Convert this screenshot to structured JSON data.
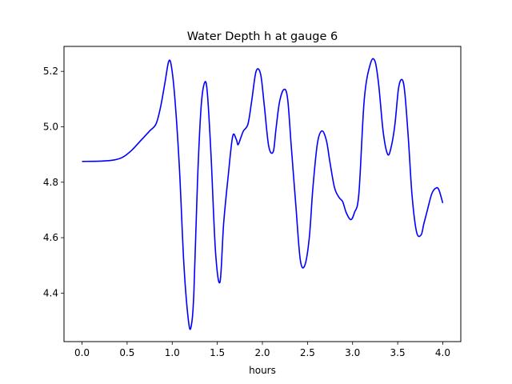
{
  "chart_data": {
    "type": "line",
    "title": "Water Depth h at gauge 6",
    "xlabel": "hours",
    "ylabel": "",
    "xlim": [
      -0.2,
      4.2
    ],
    "ylim": [
      4.225,
      5.29
    ],
    "grid": false,
    "x_ticks": [
      0.0,
      0.5,
      1.0,
      1.5,
      2.0,
      2.5,
      3.0,
      3.5,
      4.0
    ],
    "x_tick_labels": [
      "0.0",
      "0.5",
      "1.0",
      "1.5",
      "2.0",
      "2.5",
      "3.0",
      "3.5",
      "4.0"
    ],
    "y_ticks": [
      4.4,
      4.6,
      4.8,
      5.0,
      5.2
    ],
    "y_tick_labels": [
      "4.4",
      "4.6",
      "4.8",
      "5.0",
      "5.2"
    ],
    "series": [
      {
        "color": "#0000ff",
        "x": [
          0.0,
          0.2,
          0.35,
          0.45,
          0.55,
          0.65,
          0.75,
          0.82,
          0.87,
          0.92,
          0.96,
          0.99,
          1.03,
          1.08,
          1.13,
          1.18,
          1.21,
          1.24,
          1.28,
          1.32,
          1.36,
          1.39,
          1.43,
          1.48,
          1.53,
          1.57,
          1.62,
          1.67,
          1.71,
          1.73,
          1.76,
          1.79,
          1.84,
          1.88,
          1.93,
          1.98,
          2.02,
          2.07,
          2.12,
          2.15,
          2.19,
          2.24,
          2.28,
          2.32,
          2.37,
          2.42,
          2.47,
          2.52,
          2.56,
          2.61,
          2.66,
          2.71,
          2.75,
          2.8,
          2.85,
          2.89,
          2.93,
          2.98,
          3.02,
          3.07,
          3.13,
          3.2,
          3.25,
          3.29,
          3.34,
          3.39,
          3.43,
          3.47,
          3.51,
          3.55,
          3.58,
          3.62,
          3.66,
          3.71,
          3.76,
          3.79,
          3.83,
          3.88,
          3.93,
          3.96,
          4.0
        ],
        "y": [
          4.875,
          4.876,
          4.88,
          4.89,
          4.915,
          4.95,
          4.985,
          5.01,
          5.07,
          5.16,
          5.235,
          5.22,
          5.1,
          4.85,
          4.5,
          4.3,
          4.28,
          4.4,
          4.8,
          5.07,
          5.16,
          5.12,
          4.9,
          4.55,
          4.44,
          4.65,
          4.82,
          4.965,
          4.955,
          4.935,
          4.96,
          4.985,
          5.01,
          5.09,
          5.2,
          5.19,
          5.08,
          4.93,
          4.91,
          4.99,
          5.09,
          5.135,
          5.1,
          4.93,
          4.72,
          4.52,
          4.5,
          4.6,
          4.78,
          4.94,
          4.985,
          4.95,
          4.87,
          4.78,
          4.745,
          4.73,
          4.69,
          4.665,
          4.69,
          4.76,
          5.1,
          5.23,
          5.235,
          5.15,
          4.98,
          4.9,
          4.93,
          5.01,
          5.14,
          5.17,
          5.12,
          4.95,
          4.75,
          4.62,
          4.61,
          4.65,
          4.7,
          4.76,
          4.78,
          4.77,
          4.725
        ]
      }
    ]
  }
}
